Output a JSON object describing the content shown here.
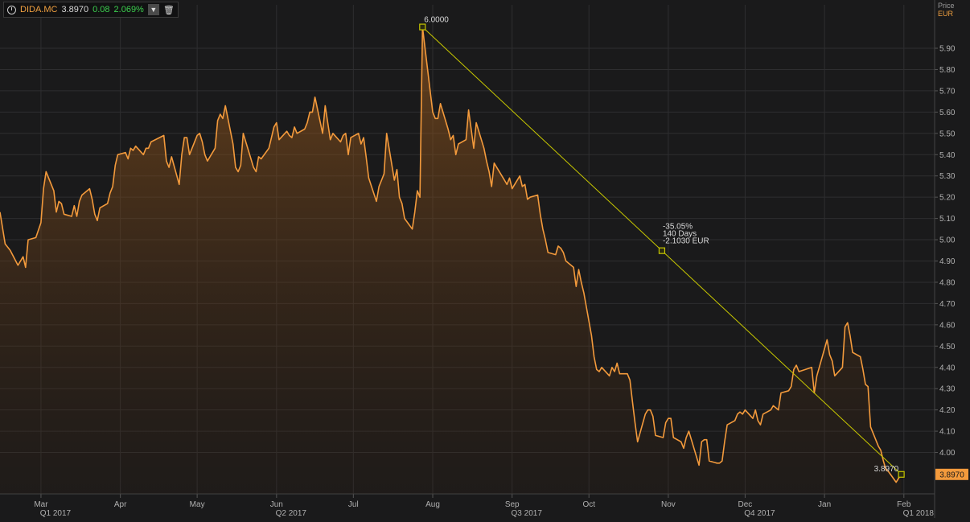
{
  "header": {
    "ticker": "DIDA.MC",
    "last": "3.8970",
    "change": "0.08",
    "change_pct": "2.069%",
    "icons": [
      "clock-icon",
      "chevron-down-icon",
      "trash-icon"
    ]
  },
  "colors": {
    "background": "#1a1a1b",
    "line": "#f39a3c",
    "trendline": "#c8c800",
    "grid": "#2e2e30",
    "axis_text": "#b0b0b0",
    "up": "#3ccf4e"
  },
  "chart_data": {
    "type": "area",
    "title": "",
    "ylabel": "Price",
    "yunit": "EUR",
    "ylim": [
      3.8,
      6.1
    ],
    "y_ticks": [
      4.0,
      4.1,
      4.2,
      4.3,
      4.4,
      4.5,
      4.6,
      4.7,
      4.8,
      4.9,
      5.0,
      5.1,
      5.2,
      5.3,
      5.4,
      5.5,
      5.6,
      5.7,
      5.8,
      5.9
    ],
    "xlim": [
      "2017-02-13",
      "2018-02-13"
    ],
    "month_ticks": [
      {
        "date": "2017-03-01",
        "label": "Mar"
      },
      {
        "date": "2017-04-01",
        "label": "Apr"
      },
      {
        "date": "2017-05-01",
        "label": "May"
      },
      {
        "date": "2017-06-01",
        "label": "Jun"
      },
      {
        "date": "2017-07-01",
        "label": "Jul"
      },
      {
        "date": "2017-08-01",
        "label": "Aug"
      },
      {
        "date": "2017-09-01",
        "label": "Sep"
      },
      {
        "date": "2017-10-01",
        "label": "Oct"
      },
      {
        "date": "2017-11-01",
        "label": "Nov"
      },
      {
        "date": "2017-12-01",
        "label": "Dec"
      },
      {
        "date": "2018-01-01",
        "label": "Jan"
      },
      {
        "date": "2018-02-01",
        "label": "Feb"
      }
    ],
    "quarter_ticks": [
      {
        "date": "2017-03-01",
        "label": "Q1 2017"
      },
      {
        "date": "2017-06-01",
        "label": "Q2 2017"
      },
      {
        "date": "2017-09-01",
        "label": "Q3 2017"
      },
      {
        "date": "2017-12-01",
        "label": "Q4 2017"
      },
      {
        "date": "2018-02-01",
        "label": "Q1 2018"
      }
    ],
    "series": [
      {
        "values": [
          [
            "2017-02-13",
            5.13
          ],
          [
            "2017-02-15",
            4.98
          ],
          [
            "2017-02-17",
            4.95
          ],
          [
            "2017-02-20",
            4.88
          ],
          [
            "2017-02-22",
            4.92
          ],
          [
            "2017-02-23",
            4.87
          ],
          [
            "2017-02-24",
            5.0
          ],
          [
            "2017-02-27",
            5.01
          ],
          [
            "2017-03-01",
            5.08
          ],
          [
            "2017-03-02",
            5.24
          ],
          [
            "2017-03-03",
            5.32
          ],
          [
            "2017-03-06",
            5.23
          ],
          [
            "2017-03-07",
            5.13
          ],
          [
            "2017-03-08",
            5.18
          ],
          [
            "2017-03-09",
            5.17
          ],
          [
            "2017-03-10",
            5.12
          ],
          [
            "2017-03-13",
            5.11
          ],
          [
            "2017-03-14",
            5.16
          ],
          [
            "2017-03-15",
            5.11
          ],
          [
            "2017-03-16",
            5.18
          ],
          [
            "2017-03-17",
            5.21
          ],
          [
            "2017-03-20",
            5.24
          ],
          [
            "2017-03-21",
            5.19
          ],
          [
            "2017-03-22",
            5.12
          ],
          [
            "2017-03-23",
            5.09
          ],
          [
            "2017-03-24",
            5.15
          ],
          [
            "2017-03-27",
            5.17
          ],
          [
            "2017-03-28",
            5.22
          ],
          [
            "2017-03-29",
            5.25
          ],
          [
            "2017-03-30",
            5.35
          ],
          [
            "2017-03-31",
            5.4
          ],
          [
            "2017-04-03",
            5.41
          ],
          [
            "2017-04-04",
            5.38
          ],
          [
            "2017-04-05",
            5.43
          ],
          [
            "2017-04-06",
            5.42
          ],
          [
            "2017-04-07",
            5.44
          ],
          [
            "2017-04-10",
            5.4
          ],
          [
            "2017-04-11",
            5.43
          ],
          [
            "2017-04-12",
            5.43
          ],
          [
            "2017-04-13",
            5.46
          ],
          [
            "2017-04-18",
            5.49
          ],
          [
            "2017-04-19",
            5.37
          ],
          [
            "2017-04-20",
            5.34
          ],
          [
            "2017-04-21",
            5.39
          ],
          [
            "2017-04-24",
            5.26
          ],
          [
            "2017-04-25",
            5.4
          ],
          [
            "2017-04-26",
            5.48
          ],
          [
            "2017-04-27",
            5.48
          ],
          [
            "2017-04-28",
            5.4
          ],
          [
            "2017-05-01",
            5.49
          ],
          [
            "2017-05-02",
            5.5
          ],
          [
            "2017-05-03",
            5.46
          ],
          [
            "2017-05-04",
            5.4
          ],
          [
            "2017-05-05",
            5.37
          ],
          [
            "2017-05-08",
            5.43
          ],
          [
            "2017-05-09",
            5.56
          ],
          [
            "2017-05-10",
            5.59
          ],
          [
            "2017-05-11",
            5.57
          ],
          [
            "2017-05-12",
            5.63
          ],
          [
            "2017-05-15",
            5.45
          ],
          [
            "2017-05-16",
            5.34
          ],
          [
            "2017-05-17",
            5.32
          ],
          [
            "2017-05-18",
            5.35
          ],
          [
            "2017-05-19",
            5.5
          ],
          [
            "2017-05-22",
            5.38
          ],
          [
            "2017-05-23",
            5.34
          ],
          [
            "2017-05-24",
            5.32
          ],
          [
            "2017-05-25",
            5.39
          ],
          [
            "2017-05-26",
            5.38
          ],
          [
            "2017-05-29",
            5.43
          ],
          [
            "2017-05-30",
            5.48
          ],
          [
            "2017-05-31",
            5.53
          ],
          [
            "2017-06-01",
            5.55
          ],
          [
            "2017-06-02",
            5.47
          ],
          [
            "2017-06-05",
            5.51
          ],
          [
            "2017-06-06",
            5.49
          ],
          [
            "2017-06-07",
            5.48
          ],
          [
            "2017-06-08",
            5.53
          ],
          [
            "2017-06-09",
            5.5
          ],
          [
            "2017-06-12",
            5.52
          ],
          [
            "2017-06-13",
            5.55
          ],
          [
            "2017-06-14",
            5.6
          ],
          [
            "2017-06-15",
            5.6
          ],
          [
            "2017-06-16",
            5.67
          ],
          [
            "2017-06-19",
            5.5
          ],
          [
            "2017-06-20",
            5.63
          ],
          [
            "2017-06-21",
            5.55
          ],
          [
            "2017-06-22",
            5.47
          ],
          [
            "2017-06-23",
            5.5
          ],
          [
            "2017-06-26",
            5.46
          ],
          [
            "2017-06-27",
            5.49
          ],
          [
            "2017-06-28",
            5.5
          ],
          [
            "2017-06-29",
            5.4
          ],
          [
            "2017-06-30",
            5.48
          ],
          [
            "2017-07-03",
            5.5
          ],
          [
            "2017-07-04",
            5.45
          ],
          [
            "2017-07-05",
            5.48
          ],
          [
            "2017-07-06",
            5.39
          ],
          [
            "2017-07-07",
            5.29
          ],
          [
            "2017-07-10",
            5.18
          ],
          [
            "2017-07-11",
            5.25
          ],
          [
            "2017-07-12",
            5.28
          ],
          [
            "2017-07-13",
            5.31
          ],
          [
            "2017-07-14",
            5.5
          ],
          [
            "2017-07-17",
            5.28
          ],
          [
            "2017-07-18",
            5.33
          ],
          [
            "2017-07-19",
            5.2
          ],
          [
            "2017-07-20",
            5.17
          ],
          [
            "2017-07-21",
            5.1
          ],
          [
            "2017-07-24",
            5.05
          ],
          [
            "2017-07-25",
            5.13
          ],
          [
            "2017-07-26",
            5.23
          ],
          [
            "2017-07-27",
            5.2
          ],
          [
            "2017-07-28",
            6.0
          ],
          [
            "2017-07-31",
            5.7
          ],
          [
            "2017-08-01",
            5.6
          ],
          [
            "2017-08-02",
            5.57
          ],
          [
            "2017-08-03",
            5.57
          ],
          [
            "2017-08-04",
            5.64
          ],
          [
            "2017-08-07",
            5.52
          ],
          [
            "2017-08-08",
            5.47
          ],
          [
            "2017-08-09",
            5.49
          ],
          [
            "2017-08-10",
            5.4
          ],
          [
            "2017-08-11",
            5.45
          ],
          [
            "2017-08-14",
            5.47
          ],
          [
            "2017-08-15",
            5.61
          ],
          [
            "2017-08-16",
            5.52
          ],
          [
            "2017-08-17",
            5.43
          ],
          [
            "2017-08-18",
            5.55
          ],
          [
            "2017-08-21",
            5.43
          ],
          [
            "2017-08-22",
            5.37
          ],
          [
            "2017-08-23",
            5.32
          ],
          [
            "2017-08-24",
            5.25
          ],
          [
            "2017-08-25",
            5.36
          ],
          [
            "2017-08-28",
            5.3
          ],
          [
            "2017-08-29",
            5.28
          ],
          [
            "2017-08-30",
            5.26
          ],
          [
            "2017-08-31",
            5.29
          ],
          [
            "2017-09-01",
            5.24
          ],
          [
            "2017-09-04",
            5.3
          ],
          [
            "2017-09-05",
            5.25
          ],
          [
            "2017-09-06",
            5.26
          ],
          [
            "2017-09-07",
            5.19
          ],
          [
            "2017-09-08",
            5.2
          ],
          [
            "2017-09-11",
            5.21
          ],
          [
            "2017-09-12",
            5.12
          ],
          [
            "2017-09-13",
            5.05
          ],
          [
            "2017-09-14",
            5.0
          ],
          [
            "2017-09-15",
            4.94
          ],
          [
            "2017-09-18",
            4.93
          ],
          [
            "2017-09-19",
            4.97
          ],
          [
            "2017-09-20",
            4.96
          ],
          [
            "2017-09-21",
            4.94
          ],
          [
            "2017-09-22",
            4.9
          ],
          [
            "2017-09-25",
            4.87
          ],
          [
            "2017-09-26",
            4.78
          ],
          [
            "2017-09-27",
            4.86
          ],
          [
            "2017-09-28",
            4.8
          ],
          [
            "2017-09-29",
            4.75
          ],
          [
            "2017-10-02",
            4.55
          ],
          [
            "2017-10-03",
            4.45
          ],
          [
            "2017-10-04",
            4.39
          ],
          [
            "2017-10-05",
            4.38
          ],
          [
            "2017-10-06",
            4.4
          ],
          [
            "2017-10-09",
            4.36
          ],
          [
            "2017-10-10",
            4.4
          ],
          [
            "2017-10-11",
            4.38
          ],
          [
            "2017-10-12",
            4.42
          ],
          [
            "2017-10-13",
            4.37
          ],
          [
            "2017-10-16",
            4.37
          ],
          [
            "2017-10-17",
            4.34
          ],
          [
            "2017-10-18",
            4.24
          ],
          [
            "2017-10-19",
            4.14
          ],
          [
            "2017-10-20",
            4.05
          ],
          [
            "2017-10-23",
            4.18
          ],
          [
            "2017-10-24",
            4.2
          ],
          [
            "2017-10-25",
            4.2
          ],
          [
            "2017-10-26",
            4.17
          ],
          [
            "2017-10-27",
            4.08
          ],
          [
            "2017-10-30",
            4.07
          ],
          [
            "2017-10-31",
            4.14
          ],
          [
            "2017-11-01",
            4.16
          ],
          [
            "2017-11-02",
            4.16
          ],
          [
            "2017-11-03",
            4.07
          ],
          [
            "2017-11-06",
            4.05
          ],
          [
            "2017-11-07",
            4.02
          ],
          [
            "2017-11-08",
            4.07
          ],
          [
            "2017-11-09",
            4.1
          ],
          [
            "2017-11-10",
            4.06
          ],
          [
            "2017-11-13",
            3.94
          ],
          [
            "2017-11-14",
            4.05
          ],
          [
            "2017-11-15",
            4.06
          ],
          [
            "2017-11-16",
            4.06
          ],
          [
            "2017-11-17",
            3.96
          ],
          [
            "2017-11-20",
            3.95
          ],
          [
            "2017-11-21",
            3.95
          ],
          [
            "2017-11-22",
            3.96
          ],
          [
            "2017-11-23",
            4.05
          ],
          [
            "2017-11-24",
            4.13
          ],
          [
            "2017-11-27",
            4.15
          ],
          [
            "2017-11-28",
            4.18
          ],
          [
            "2017-11-29",
            4.19
          ],
          [
            "2017-11-30",
            4.18
          ],
          [
            "2017-12-01",
            4.2
          ],
          [
            "2017-12-04",
            4.16
          ],
          [
            "2017-12-05",
            4.2
          ],
          [
            "2017-12-06",
            4.15
          ],
          [
            "2017-12-07",
            4.13
          ],
          [
            "2017-12-08",
            4.18
          ],
          [
            "2017-12-11",
            4.2
          ],
          [
            "2017-12-12",
            4.22
          ],
          [
            "2017-12-13",
            4.21
          ],
          [
            "2017-12-14",
            4.2
          ],
          [
            "2017-12-15",
            4.28
          ],
          [
            "2017-12-18",
            4.29
          ],
          [
            "2017-12-19",
            4.31
          ],
          [
            "2017-12-20",
            4.39
          ],
          [
            "2017-12-21",
            4.41
          ],
          [
            "2017-12-22",
            4.38
          ],
          [
            "2017-12-27",
            4.4
          ],
          [
            "2017-12-28",
            4.28
          ],
          [
            "2017-12-29",
            4.36
          ],
          [
            "2018-01-02",
            4.53
          ],
          [
            "2018-01-03",
            4.46
          ],
          [
            "2018-01-04",
            4.43
          ],
          [
            "2018-01-05",
            4.36
          ],
          [
            "2018-01-08",
            4.4
          ],
          [
            "2018-01-09",
            4.59
          ],
          [
            "2018-01-10",
            4.61
          ],
          [
            "2018-01-11",
            4.55
          ],
          [
            "2018-01-12",
            4.47
          ],
          [
            "2018-01-15",
            4.45
          ],
          [
            "2018-01-16",
            4.39
          ],
          [
            "2018-01-17",
            4.32
          ],
          [
            "2018-01-18",
            4.31
          ],
          [
            "2018-01-19",
            4.12
          ],
          [
            "2018-01-22",
            4.03
          ],
          [
            "2018-01-23",
            4.01
          ],
          [
            "2018-01-24",
            3.96
          ],
          [
            "2018-01-25",
            3.92
          ],
          [
            "2018-01-26",
            3.91
          ],
          [
            "2018-01-29",
            3.86
          ],
          [
            "2018-01-30",
            3.88
          ],
          [
            "2018-01-31",
            3.897
          ]
        ]
      }
    ],
    "annotations": [
      {
        "kind": "point-label",
        "date": "2017-07-28",
        "value": 6.0,
        "text": "6.0000"
      },
      {
        "kind": "point-label",
        "date": "2018-01-31",
        "value": 3.897,
        "text": "3.8970"
      },
      {
        "kind": "trendline",
        "from": [
          "2017-07-28",
          6.0
        ],
        "to": [
          "2018-01-31",
          3.897
        ]
      },
      {
        "kind": "midpoint-label",
        "lines": [
          "-35.05%",
          "140 Days",
          "-2.1030 EUR"
        ]
      }
    ],
    "last_value_label": "3.8970",
    "grid": true
  }
}
